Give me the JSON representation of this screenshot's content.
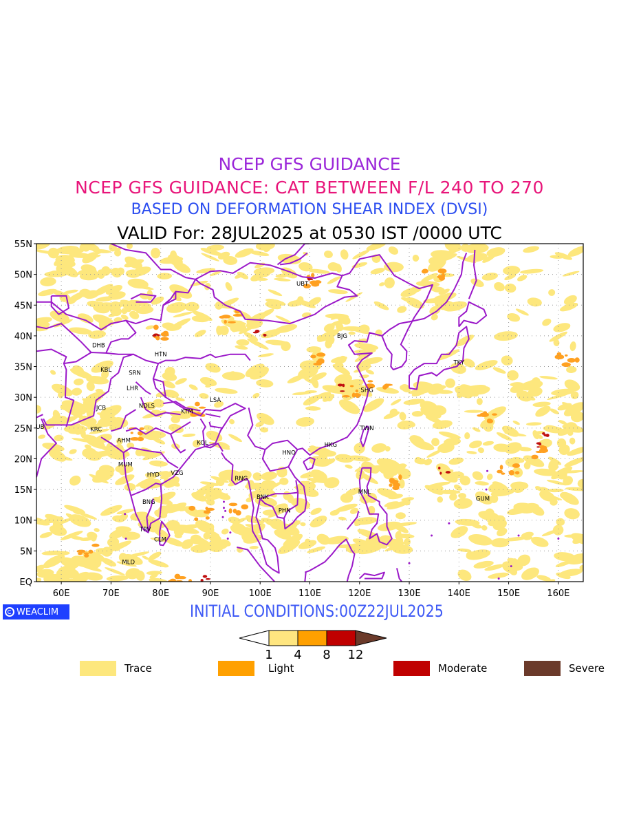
{
  "titles": {
    "line1": "NCEP GFS GUIDANCE",
    "line2": "NCEP GFS GUIDANCE: CAT BETWEEN F/L 240 TO 270",
    "line3": "BASED ON DEFORMATION SHEAR INDEX (DVSI)",
    "line4": "VALID For: 28JUL2025 at 0530 IST /0000 UTC"
  },
  "title_colors": {
    "line1": "#9b27d9",
    "line2": "#e8157a",
    "line3": "#2b4df0",
    "line4": "#000000"
  },
  "axes": {
    "lat_labels": [
      "55N",
      "50N",
      "45N",
      "40N",
      "35N",
      "30N",
      "25N",
      "20N",
      "15N",
      "10N",
      "5N",
      "EQ"
    ],
    "lon_labels": [
      "60E",
      "70E",
      "80E",
      "90E",
      "100E",
      "110E",
      "120E",
      "130E",
      "140E",
      "150E",
      "160E"
    ],
    "lon_range": [
      55,
      165
    ],
    "lat_range": [
      0,
      55
    ],
    "grid": "dotted"
  },
  "cities": [
    {
      "code": "UBT",
      "lon": 108.5,
      "lat": 48.5
    },
    {
      "code": "BJG",
      "lon": 116.5,
      "lat": 40.0
    },
    {
      "code": "DHB",
      "lon": 67.5,
      "lat": 38.5
    },
    {
      "code": "HTN",
      "lon": 80.0,
      "lat": 37.0
    },
    {
      "code": "KBL",
      "lon": 69.0,
      "lat": 34.5
    },
    {
      "code": "SRN",
      "lon": 74.8,
      "lat": 34.0
    },
    {
      "code": "TKY",
      "lon": 140.0,
      "lat": 35.7
    },
    {
      "code": "SHG",
      "lon": 121.5,
      "lat": 31.2
    },
    {
      "code": "LHR",
      "lon": 74.3,
      "lat": 31.5
    },
    {
      "code": "LSA",
      "lon": 91.0,
      "lat": 29.6
    },
    {
      "code": "JCB",
      "lon": 68.0,
      "lat": 28.3
    },
    {
      "code": "NDLS",
      "lon": 77.2,
      "lat": 28.6
    },
    {
      "code": "KTM",
      "lon": 85.3,
      "lat": 27.7
    },
    {
      "code": "DUB",
      "lon": 55.3,
      "lat": 25.2
    },
    {
      "code": "KRC",
      "lon": 67.0,
      "lat": 24.8
    },
    {
      "code": "TWN",
      "lon": 121.5,
      "lat": 25.0
    },
    {
      "code": "AHM",
      "lon": 72.6,
      "lat": 23.0
    },
    {
      "code": "KOL",
      "lon": 88.4,
      "lat": 22.6
    },
    {
      "code": "HNO",
      "lon": 105.8,
      "lat": 21.0
    },
    {
      "code": "HKG",
      "lon": 114.2,
      "lat": 22.3
    },
    {
      "code": "MUM",
      "lon": 72.9,
      "lat": 19.1
    },
    {
      "code": "HYD",
      "lon": 78.5,
      "lat": 17.4
    },
    {
      "code": "VZG",
      "lon": 83.3,
      "lat": 17.7
    },
    {
      "code": "RNG",
      "lon": 96.2,
      "lat": 16.8
    },
    {
      "code": "MNL",
      "lon": 121.0,
      "lat": 14.6
    },
    {
      "code": "GUM",
      "lon": 144.8,
      "lat": 13.5
    },
    {
      "code": "BNK",
      "lon": 100.5,
      "lat": 13.8
    },
    {
      "code": "PHN",
      "lon": 104.9,
      "lat": 11.6
    },
    {
      "code": "BNG",
      "lon": 77.6,
      "lat": 13.0
    },
    {
      "code": "TRV",
      "lon": 76.9,
      "lat": 8.5
    },
    {
      "code": "CLM",
      "lon": 79.9,
      "lat": 6.9
    },
    {
      "code": "MLD",
      "lon": 73.5,
      "lat": 3.2
    }
  ],
  "initial_conditions": "INITIAL CONDITIONS:00Z22JUL2025",
  "brand": "WEACLIM",
  "colorbar": {
    "ticks": [
      "1",
      "4",
      "8",
      "12"
    ],
    "colors": [
      "#ffe680",
      "#ffa000",
      "#c00000",
      "#6b3a2a"
    ]
  },
  "legend": [
    {
      "label": "Trace",
      "color": "#fde77d"
    },
    {
      "label": "Light",
      "color": "#ffa000"
    },
    {
      "label": "Moderate",
      "color": "#c00000"
    },
    {
      "label": "Severe",
      "color": "#6b3a2a"
    }
  ],
  "map_colors": {
    "boundary": "#9b19c9",
    "trace": "#fde77d",
    "light": "#ffa020",
    "moderate": "#c01010",
    "severe": "#6b3a2a"
  }
}
